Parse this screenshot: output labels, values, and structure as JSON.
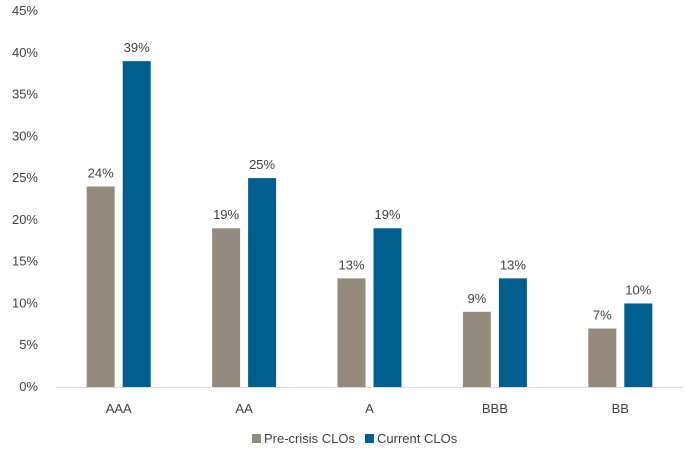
{
  "chart_data": {
    "type": "bar",
    "title": "",
    "xlabel": "",
    "ylabel": "",
    "categories": [
      "AAA",
      "AA",
      "A",
      "BBB",
      "BB"
    ],
    "series": [
      {
        "name": "Pre-crisis CLOs",
        "color": "#948b7e",
        "values": [
          24,
          19,
          13,
          9,
          7
        ],
        "labels": [
          "24%",
          "19%",
          "13%",
          "9%",
          "7%"
        ]
      },
      {
        "name": "Current CLOs",
        "color": "#005f8f",
        "values": [
          39,
          25,
          19,
          13,
          10
        ],
        "labels": [
          "39%",
          "25%",
          "19%",
          "13%",
          "10%"
        ]
      }
    ],
    "ylim": [
      0,
      45
    ],
    "yticks": [
      0,
      5,
      10,
      15,
      20,
      25,
      30,
      35,
      40,
      45
    ],
    "ytick_labels": [
      "0%",
      "5%",
      "10%",
      "15%",
      "20%",
      "25%",
      "30%",
      "35%",
      "40%",
      "45%"
    ],
    "grid": false,
    "legend_position": "bottom",
    "axis_color": "#d9d9d9"
  }
}
